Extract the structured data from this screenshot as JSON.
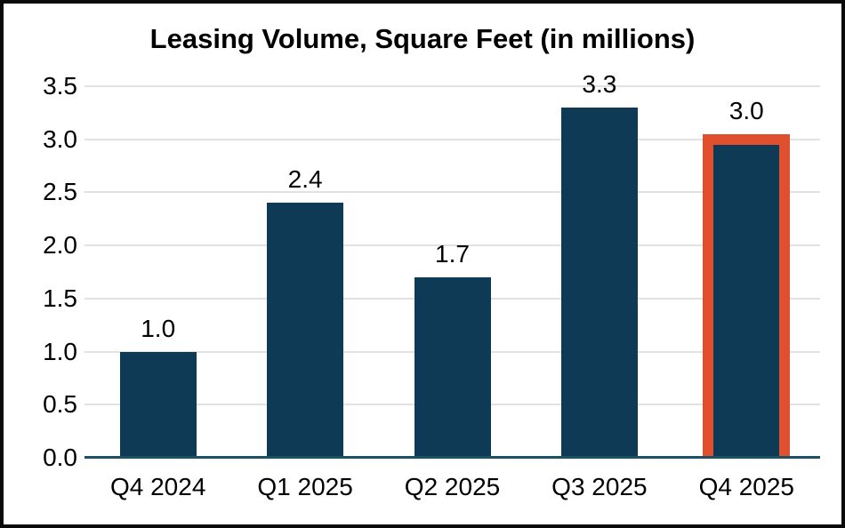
{
  "chart_data": {
    "type": "bar",
    "title": "Leasing Volume, Square Feet (in millions)",
    "categories": [
      "Q4 2024",
      "Q1 2025",
      "Q2 2025",
      "Q3 2025",
      "Q4 2025"
    ],
    "values": [
      1.0,
      2.4,
      1.7,
      3.3,
      3.0
    ],
    "value_labels": [
      "1.0",
      "2.4",
      "1.7",
      "3.3",
      "3.0"
    ],
    "xlabel": "",
    "ylabel": "",
    "ylim": [
      0,
      3.5
    ],
    "y_tick_step": 0.5,
    "y_tick_labels": [
      "0.0",
      "0.5",
      "1.0",
      "1.5",
      "2.0",
      "2.5",
      "3.0",
      "3.5"
    ],
    "grid": true,
    "legend": "none",
    "highlighted_category": "Q4 2025",
    "highlight_index": 4,
    "colors": {
      "bar_fill": "#0E3A56",
      "highlight_outline": "#E1502E",
      "gridline": "#E2E2E2",
      "axis_line": "#1E5064",
      "text": "#000000",
      "frame_border": "#0a0a0a",
      "background": "#FFFFFF"
    }
  }
}
